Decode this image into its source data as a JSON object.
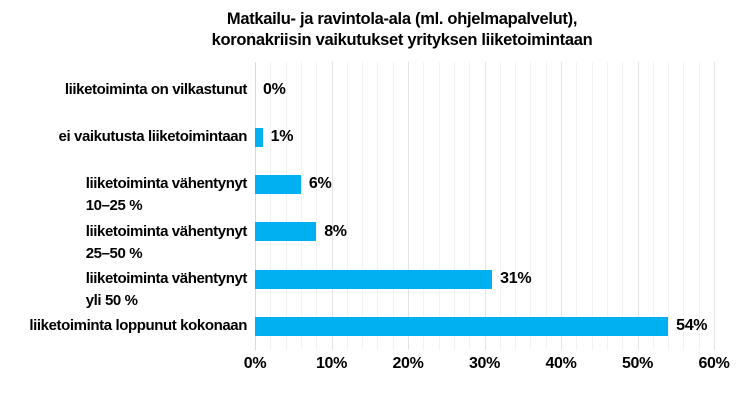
{
  "title": {
    "line1": "Matkailu- ja ravintola-ala (ml. ohjelmapalvelut),",
    "line2": "koronakriisin vaikutukset yrityksen liiketoimintaan"
  },
  "chart_data": {
    "type": "bar",
    "orientation": "horizontal",
    "title": "Matkailu- ja ravintola-ala (ml. ohjelmapalvelut), koronakriisin vaikutukset yrityksen liiketoimintaan",
    "categories": [
      "liiketoiminta on vilkastunut",
      "ei vaikutusta liiketoimintaan",
      "liiketoiminta vähentynyt 10–25 %",
      "liiketoiminta vähentynyt 25–50 %",
      "liiketoiminta vähentynyt yli 50 %",
      "liiketoiminta loppunut kokonaan"
    ],
    "category_lines": [
      [
        "liiketoiminta on vilkastunut"
      ],
      [
        "ei vaikutusta liiketoimintaan"
      ],
      [
        "liiketoiminta vähentynyt",
        "10–25 %"
      ],
      [
        "liiketoiminta vähentynyt",
        "25–50 %"
      ],
      [
        "liiketoiminta vähentynyt",
        "yli 50 %"
      ],
      [
        "liiketoiminta loppunut kokonaan"
      ]
    ],
    "values": [
      0,
      1,
      6,
      8,
      31,
      54
    ],
    "value_labels": [
      "0%",
      "1%",
      "6%",
      "8%",
      "31%",
      "54%"
    ],
    "xlim": [
      0,
      60
    ],
    "xtick_step": 10,
    "xtick_labels": [
      "0%",
      "10%",
      "20%",
      "30%",
      "40%",
      "50%",
      "60%"
    ],
    "minor_grid_step": 2,
    "grid": "vertical minor gridlines every 2%, major every 10%",
    "legend": "none",
    "bar_color": "#00b0f0",
    "gridline_color_minor": "#f2f2f2",
    "gridline_color_major": "#e3e3e3",
    "axis_line_color": "#d9d9d9",
    "text_color": "#000000",
    "background_color": "#ffffff"
  }
}
